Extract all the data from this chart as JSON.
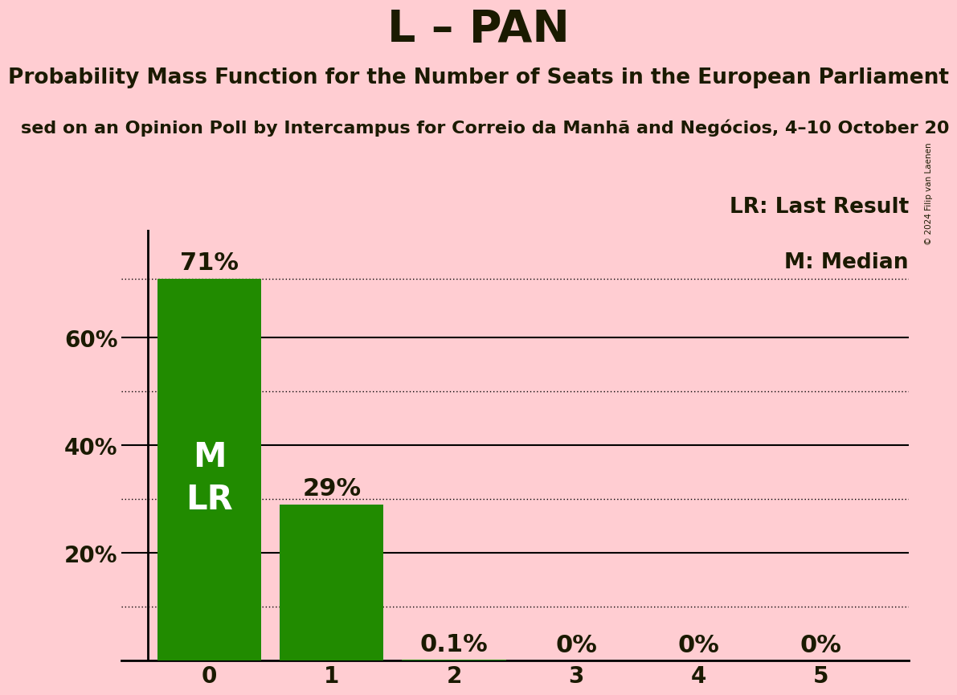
{
  "title": "L – PAN",
  "subtitle": "Probability Mass Function for the Number of Seats in the European Parliament",
  "source_line": "sed on an Opinion Poll by Intercampus for Correio da Manhã and Negócios, 4–10 October 20",
  "copyright": "© 2024 Filip van Laenen",
  "categories": [
    0,
    1,
    2,
    3,
    4,
    5
  ],
  "values": [
    71,
    29,
    0.1,
    0,
    0,
    0
  ],
  "bar_labels": [
    "71%",
    "29%",
    "0.1%",
    "0%",
    "0%",
    "0%"
  ],
  "bar_color": "#218B00",
  "background_color": "#FFCDD2",
  "text_color": "#1a1a00",
  "bar_label_color_outside": "#1a1a00",
  "ylim": [
    0,
    80
  ],
  "yticks": [
    20,
    40,
    60
  ],
  "ytick_labels": [
    "20%",
    "40%",
    "60%"
  ],
  "solid_hlines": [
    20,
    40,
    60
  ],
  "dotted_hlines": [
    10,
    30,
    50,
    71
  ],
  "legend_lr": "LR: Last Result",
  "legend_m": "M: Median",
  "bar_text_M": "M",
  "bar_text_LR": "LR",
  "title_fontsize": 40,
  "subtitle_fontsize": 19,
  "source_fontsize": 16,
  "bar_label_fontsize": 22,
  "axis_tick_fontsize": 20,
  "legend_fontsize": 19,
  "inside_label_threshold": 10,
  "m_lr_fontsize": 30
}
